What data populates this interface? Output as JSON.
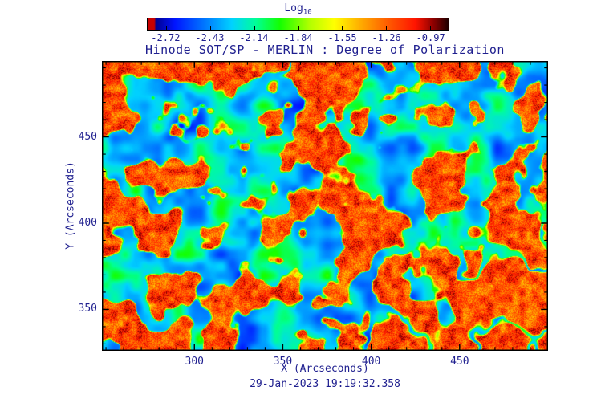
{
  "title": "Hinode SOT/SP - MERLIN : Degree of Polarization",
  "colorbar": {
    "label_main": "Log",
    "label_sub": "10",
    "ticks": [
      "-2.72",
      "-2.43",
      "-2.14",
      "-1.84",
      "-1.55",
      "-1.26",
      "-0.97"
    ],
    "css_stops": [
      [
        "#c80000",
        0
      ],
      [
        "#c80000",
        2.2
      ],
      [
        "#000090",
        2.8
      ],
      [
        "#0014ff",
        9
      ],
      [
        "#0078ff",
        19
      ],
      [
        "#00d2ff",
        28
      ],
      [
        "#00ff96",
        36
      ],
      [
        "#14ff00",
        44
      ],
      [
        "#b4ff00",
        54
      ],
      [
        "#ffff00",
        62
      ],
      [
        "#ffaa00",
        71
      ],
      [
        "#ff5a00",
        80
      ],
      [
        "#ff1400",
        89
      ],
      [
        "#8c0000",
        95
      ],
      [
        "#1e0000",
        100
      ]
    ]
  },
  "axes": {
    "xlabel": "X (Arcseconds)",
    "ylabel": "Y (Arcseconds)",
    "x_ticks": [
      300,
      350,
      400,
      450
    ],
    "y_ticks": [
      350,
      400,
      450
    ],
    "xlim": [
      247.7,
      500.0
    ],
    "ylim": [
      326.0,
      494.0
    ],
    "minor_tick_step": 10
  },
  "timestamp": "29-Jan-2023 19:19:32.358",
  "chart_data": {
    "type": "heatmap",
    "title": "Hinode SOT/SP - MERLIN : Degree of Polarization",
    "colorbar_label": "Log10",
    "colorbar_ticks": [
      -2.72,
      -2.43,
      -2.14,
      -1.84,
      -1.55,
      -1.26,
      -0.97
    ],
    "value_range_log10": [
      -2.72,
      -0.97
    ],
    "xlabel": "X (Arcseconds)",
    "ylabel": "Y (Arcseconds)",
    "xlim": [
      247.7,
      500.0
    ],
    "ylim": [
      326.0,
      494.0
    ],
    "x_ticks": [
      300,
      350,
      400,
      450
    ],
    "y_ticks": [
      350,
      400,
      450
    ],
    "timestamp": "29-Jan-2023 19:19:32.358",
    "description": "Solar degree-of-polarization map: predominantly orange-red granular field (log10 DoP about -1.3 to -1.0) crossed by meandering filamentary lanes of low polarization rendered blue/cyan with green-yellow rims (log10 DoP about -2.7 to -2.0). A prominent blue lane network runs diagonally from lower-left toward upper-right of the frame.",
    "colormap": [
      [
        0.0,
        "#00008c"
      ],
      [
        0.1,
        "#0014ff"
      ],
      [
        0.2,
        "#0078ff"
      ],
      [
        0.3,
        "#00d2ff"
      ],
      [
        0.38,
        "#00ff96"
      ],
      [
        0.46,
        "#14ff00"
      ],
      [
        0.56,
        "#b4ff00"
      ],
      [
        0.64,
        "#ffff00"
      ],
      [
        0.74,
        "#ffaa00"
      ],
      [
        0.84,
        "#ff5a00"
      ],
      [
        0.93,
        "#ff1400"
      ],
      [
        1.0,
        "#780000"
      ]
    ],
    "generation": {
      "seed": 29123,
      "lane_threshold": 0.93,
      "lane_soft": 0.06,
      "region_widen": 0.14,
      "corridor_widen": 0.09,
      "base_level": 0.86,
      "base_amp": 0.35,
      "lane_level": 0.08,
      "lane_amp": 0.42
    }
  }
}
